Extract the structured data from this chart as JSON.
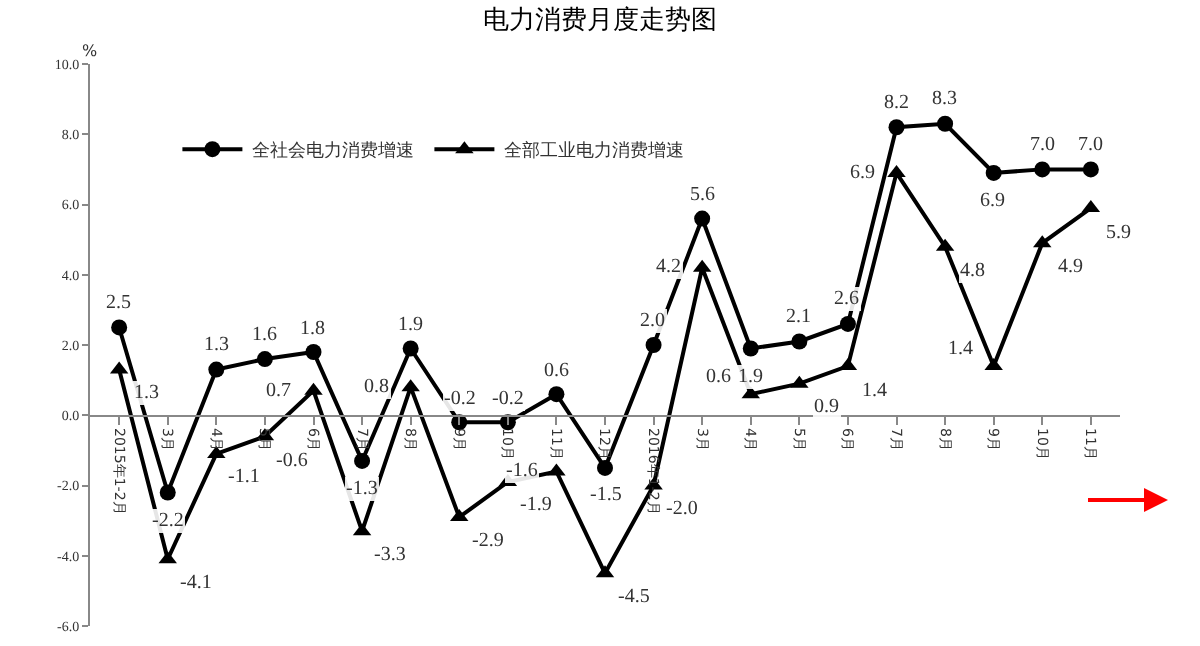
{
  "chart_data": {
    "type": "line",
    "title": "电力消费月度走势图",
    "ylabel": "%",
    "categories": [
      "2015年1-2月",
      "3月",
      "4月",
      "5月",
      "6月",
      "7月",
      "8月",
      "9月",
      "10月",
      "11月",
      "12月",
      "2016年1-2月",
      "3月",
      "4月",
      "5月",
      "6月",
      "7月",
      "8月",
      "9月",
      "10月",
      "11月"
    ],
    "series": [
      {
        "name": "全社会电力消费增速",
        "color": "#000000",
        "marker": "circle",
        "values": [
          2.5,
          -2.2,
          1.3,
          1.6,
          1.8,
          -1.3,
          1.9,
          -0.2,
          -0.2,
          0.6,
          -1.5,
          2.0,
          5.6,
          1.9,
          2.1,
          2.6,
          8.2,
          8.3,
          6.9,
          7.0,
          7.0
        ],
        "value_labels": [
          "2.5",
          "-2.2",
          "1.3",
          "1.6",
          "1.8",
          "-1.3",
          "1.9",
          "-0.2",
          "-0.2",
          "0.6",
          "-1.5",
          "2.0",
          "5.6",
          "1.9",
          "2.1",
          "2.6",
          "8.2",
          "8.3",
          "6.9",
          "7.0",
          "7.0"
        ]
      },
      {
        "name": "全部工业电力消费增速",
        "color": "#000000",
        "marker": "triangle",
        "values": [
          1.3,
          -4.1,
          -1.1,
          -0.6,
          0.7,
          -3.3,
          0.8,
          -2.9,
          -1.9,
          -1.6,
          -4.5,
          -2.0,
          4.2,
          0.6,
          0.9,
          1.4,
          6.9,
          4.8,
          1.4,
          4.9,
          5.9
        ],
        "value_labels": [
          "1.3",
          "-4.1",
          "-1.1",
          "-0.6",
          "0.7",
          "-3.3",
          "0.8",
          "-2.9",
          "-1.9",
          "-1.6",
          "-4.5",
          "-2.0",
          "4.2",
          "0.6",
          "0.9",
          "1.4",
          "6.9",
          "4.8",
          "1.4",
          "4.9",
          "5.9"
        ]
      }
    ],
    "ylim": [
      -6,
      10
    ],
    "yticks": [
      {
        "value": -6,
        "label": "-6.0"
      },
      {
        "value": -4,
        "label": "-4.0"
      },
      {
        "value": -2,
        "label": "-2.0"
      },
      {
        "value": 0,
        "label": "0.0"
      },
      {
        "value": 2,
        "label": "2.0"
      },
      {
        "value": 4,
        "label": "4.0"
      },
      {
        "value": 6,
        "label": "6.0"
      },
      {
        "value": 8,
        "label": "8.0"
      },
      {
        "value": 10,
        "label": "10.0"
      }
    ],
    "legend": "top left",
    "grid": false,
    "line_style": "solid"
  }
}
